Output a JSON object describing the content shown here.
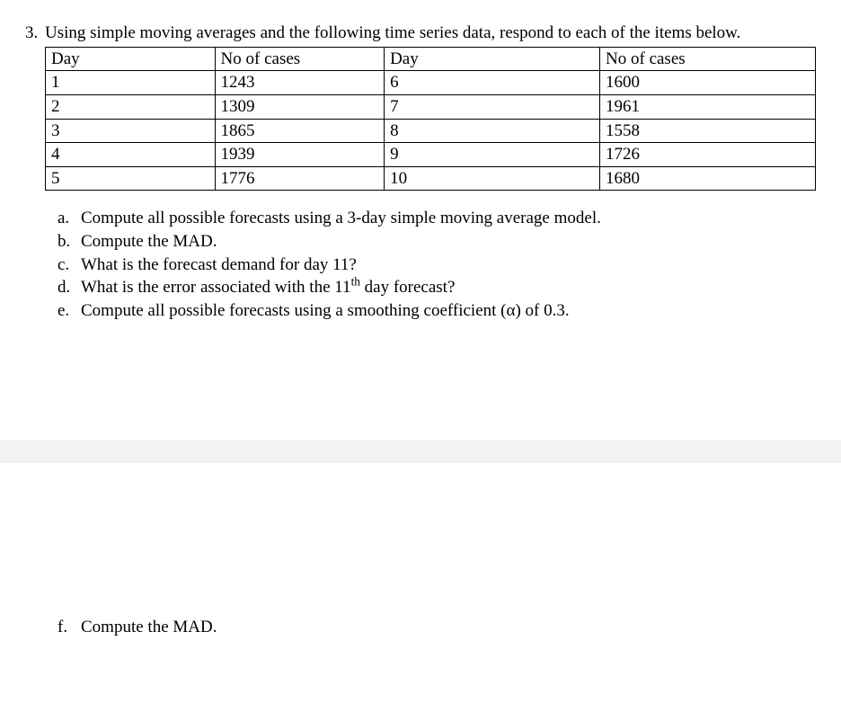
{
  "problem": {
    "number": "3.",
    "intro": "Using simple moving averages and the following time series data, respond to each of the items below."
  },
  "table": {
    "headers": {
      "day": "Day",
      "cases": "No of cases"
    },
    "rows": [
      {
        "dayL": "1",
        "casesL": "1243",
        "dayR": "6",
        "casesR": "1600"
      },
      {
        "dayL": "2",
        "casesL": "1309",
        "dayR": "7",
        "casesR": "1961"
      },
      {
        "dayL": "3",
        "casesL": "1865",
        "dayR": "8",
        "casesR": "1558"
      },
      {
        "dayL": "4",
        "casesL": "1939",
        "dayR": "9",
        "casesR": "1726"
      },
      {
        "dayL": "5",
        "casesL": "1776",
        "dayR": "10",
        "casesR": "1680"
      }
    ]
  },
  "subparts": {
    "a": {
      "marker": "a.",
      "text": "Compute all possible forecasts using a 3-day simple moving average model."
    },
    "b": {
      "marker": "b.",
      "text": "Compute the MAD."
    },
    "c": {
      "marker": "c.",
      "text": "What is the forecast demand for day 11?"
    },
    "d": {
      "marker": "d.",
      "pre": "What is the error associated with the 11",
      "sup": "th",
      "post": " day forecast?"
    },
    "e": {
      "marker": "e.",
      "text": "Compute all possible forecasts using a smoothing coefficient (α) of 0.3."
    },
    "f": {
      "marker": "f.",
      "text": "Compute the MAD."
    }
  }
}
